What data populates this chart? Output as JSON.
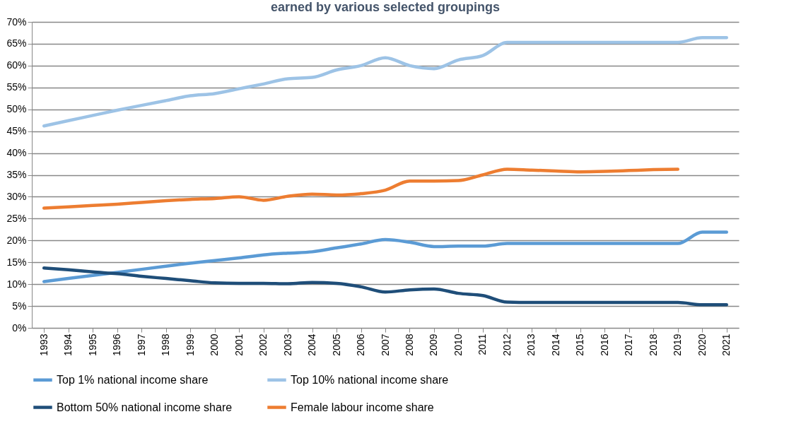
{
  "chart_data": {
    "type": "line",
    "title": "earned by various selected groupings",
    "categories": [
      "1993",
      "1994",
      "1995",
      "1996",
      "1997",
      "1998",
      "1999",
      "2000",
      "2001",
      "2002",
      "2003",
      "2004",
      "2005",
      "2006",
      "2007",
      "2008",
      "2009",
      "2010",
      "2011",
      "2012",
      "2013",
      "2014",
      "2015",
      "2016",
      "2017",
      "2018",
      "2019",
      "2020",
      "2021"
    ],
    "series": [
      {
        "name": "Top 1% national income share",
        "color": "#5b9bd5",
        "values": [
          10.6,
          11.3,
          12.0,
          12.7,
          13.4,
          14.1,
          14.8,
          15.4,
          16.0,
          16.7,
          17.1,
          17.4,
          18.3,
          19.2,
          20.2,
          19.6,
          18.6,
          18.7,
          18.7,
          19.3,
          19.3,
          19.3,
          19.3,
          19.3,
          19.3,
          19.3,
          19.3,
          21.9,
          21.9
        ]
      },
      {
        "name": "Top 10% national income share",
        "color": "#9dc3e6",
        "values": [
          46.2,
          47.4,
          48.6,
          49.8,
          50.9,
          52.0,
          53.1,
          53.6,
          54.7,
          55.8,
          57.0,
          57.3,
          59.0,
          60.0,
          61.8,
          60.0,
          59.3,
          61.3,
          62.3,
          65.3,
          65.3,
          65.3,
          65.3,
          65.3,
          65.3,
          65.3,
          65.3,
          66.4,
          66.4
        ]
      },
      {
        "name": "Bottom 50% national income share",
        "color": "#1f4e79",
        "values": [
          13.7,
          13.3,
          12.8,
          12.4,
          11.8,
          11.3,
          10.8,
          10.3,
          10.2,
          10.2,
          10.1,
          10.4,
          10.2,
          9.4,
          8.2,
          8.7,
          8.9,
          7.9,
          7.4,
          5.9,
          5.8,
          5.8,
          5.8,
          5.8,
          5.8,
          5.8,
          5.8,
          5.3,
          5.3
        ]
      },
      {
        "name": "Female labour income share",
        "color": "#ed7d31",
        "values": [
          27.4,
          27.7,
          28.0,
          28.3,
          28.7,
          29.1,
          29.4,
          29.6,
          30.0,
          29.2,
          30.1,
          30.6,
          30.4,
          30.7,
          31.5,
          33.6,
          33.6,
          33.7,
          35.0,
          36.3,
          36.1,
          35.9,
          35.7,
          35.8,
          36.0,
          36.2,
          36.3,
          null,
          null
        ]
      }
    ],
    "ylim": [
      0,
      70
    ],
    "yticks": [
      {
        "value": 0,
        "label": "0%"
      },
      {
        "value": 5,
        "label": "5%"
      },
      {
        "value": 10,
        "label": "10%"
      },
      {
        "value": 15,
        "label": "15%"
      },
      {
        "value": 20,
        "label": "20%"
      },
      {
        "value": 25,
        "label": "25%"
      },
      {
        "value": 30,
        "label": "30%"
      },
      {
        "value": 35,
        "label": "35%"
      },
      {
        "value": 40,
        "label": "40%"
      },
      {
        "value": 45,
        "label": "45%"
      },
      {
        "value": 50,
        "label": "50%"
      },
      {
        "value": 55,
        "label": "55%"
      },
      {
        "value": 60,
        "label": "60%"
      },
      {
        "value": 65,
        "label": "65%"
      },
      {
        "value": 70,
        "label": "70%"
      }
    ],
    "grid": "y",
    "legend": "bottom",
    "marker": "none",
    "line_style": "solid"
  }
}
